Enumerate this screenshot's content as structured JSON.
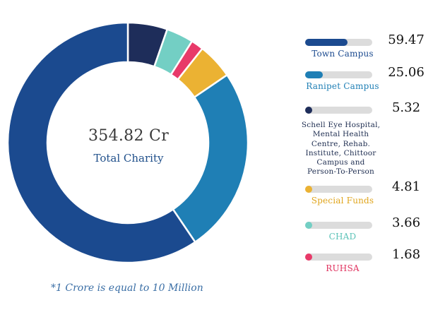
{
  "chart_data": {
    "type": "pie",
    "center_total": "354.82 Cr",
    "center_label": "Total Charity",
    "footnote": "*1 Crore is equal to 10 Million",
    "slices": [
      {
        "name": "Town Campus",
        "label_lines": [
          "Town Campus"
        ],
        "value": 59.47,
        "display": "59.47",
        "color": "#1b4a8f",
        "label_color": "#1b4a8f"
      },
      {
        "name": "Ranipet Campus",
        "label_lines": [
          "Ranipet Campus"
        ],
        "value": 25.06,
        "display": "25.06",
        "color": "#1f7fb5",
        "label_color": "#1f7fb5"
      },
      {
        "name": "Schell Eye Hospital, Mental Health Centre, Rehab. Institute, Chittoor Campus and Person-To-Person",
        "label_lines": [
          "Schell Eye Hospital,",
          "Mental Health",
          "Centre, Rehab.",
          "Institute, Chittoor",
          "Campus and",
          "Person-To-Person"
        ],
        "value": 5.32,
        "display": "5.32",
        "color": "#1e2d5a",
        "label_color": "#1e2d50"
      },
      {
        "name": "Special Funds",
        "label_lines": [
          "Special Funds"
        ],
        "value": 4.81,
        "display": "4.81",
        "color": "#ebb233",
        "label_color": "#e0a51c"
      },
      {
        "name": "CHAD",
        "label_lines": [
          "CHAD"
        ],
        "value": 3.66,
        "display": "3.66",
        "color": "#73cfc4",
        "label_color": "#5cc3b8"
      },
      {
        "name": "RUHSA",
        "label_lines": [
          "RUHSA"
        ],
        "value": 1.68,
        "display": "1.68",
        "color": "#e83a69",
        "label_color": "#e0335f"
      }
    ]
  }
}
